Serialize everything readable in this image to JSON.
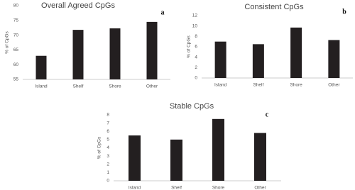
{
  "chart_data": [
    {
      "type": "bar",
      "title": "Overall Agreed CpGs",
      "panel_label": "a",
      "y_label": "% of CpGs",
      "categories": [
        "Island",
        "Shelf",
        "Shore",
        "Other"
      ],
      "values": [
        63,
        71.8,
        72.3,
        74.5
      ],
      "color": "#231f20",
      "ylim": [
        55,
        80
      ],
      "yticks": [
        55,
        60,
        65,
        70,
        75,
        80
      ],
      "grid": false
    },
    {
      "type": "bar",
      "title": "Consistent CpGs",
      "panel_label": "b",
      "y_label": "% of CpGs",
      "categories": [
        "Island",
        "Shelf",
        "Shore",
        "Other"
      ],
      "values": [
        7,
        6.5,
        9.7,
        7.3
      ],
      "color": "#231f20",
      "ylim": [
        0,
        12
      ],
      "yticks": [
        0,
        2,
        4,
        6,
        8,
        10,
        12
      ],
      "grid": false
    },
    {
      "type": "bar",
      "title": "Stable CpGs",
      "panel_label": "c",
      "y_label": "% of CpGs",
      "categories": [
        "Island",
        "Shelf",
        "Shore",
        "Other"
      ],
      "values": [
        5.5,
        5,
        7.5,
        5.8
      ],
      "color": "#231f20",
      "ylim": [
        0,
        8
      ],
      "yticks": [
        0,
        1,
        2,
        3,
        4,
        5,
        6,
        7,
        8
      ],
      "grid": false
    }
  ]
}
